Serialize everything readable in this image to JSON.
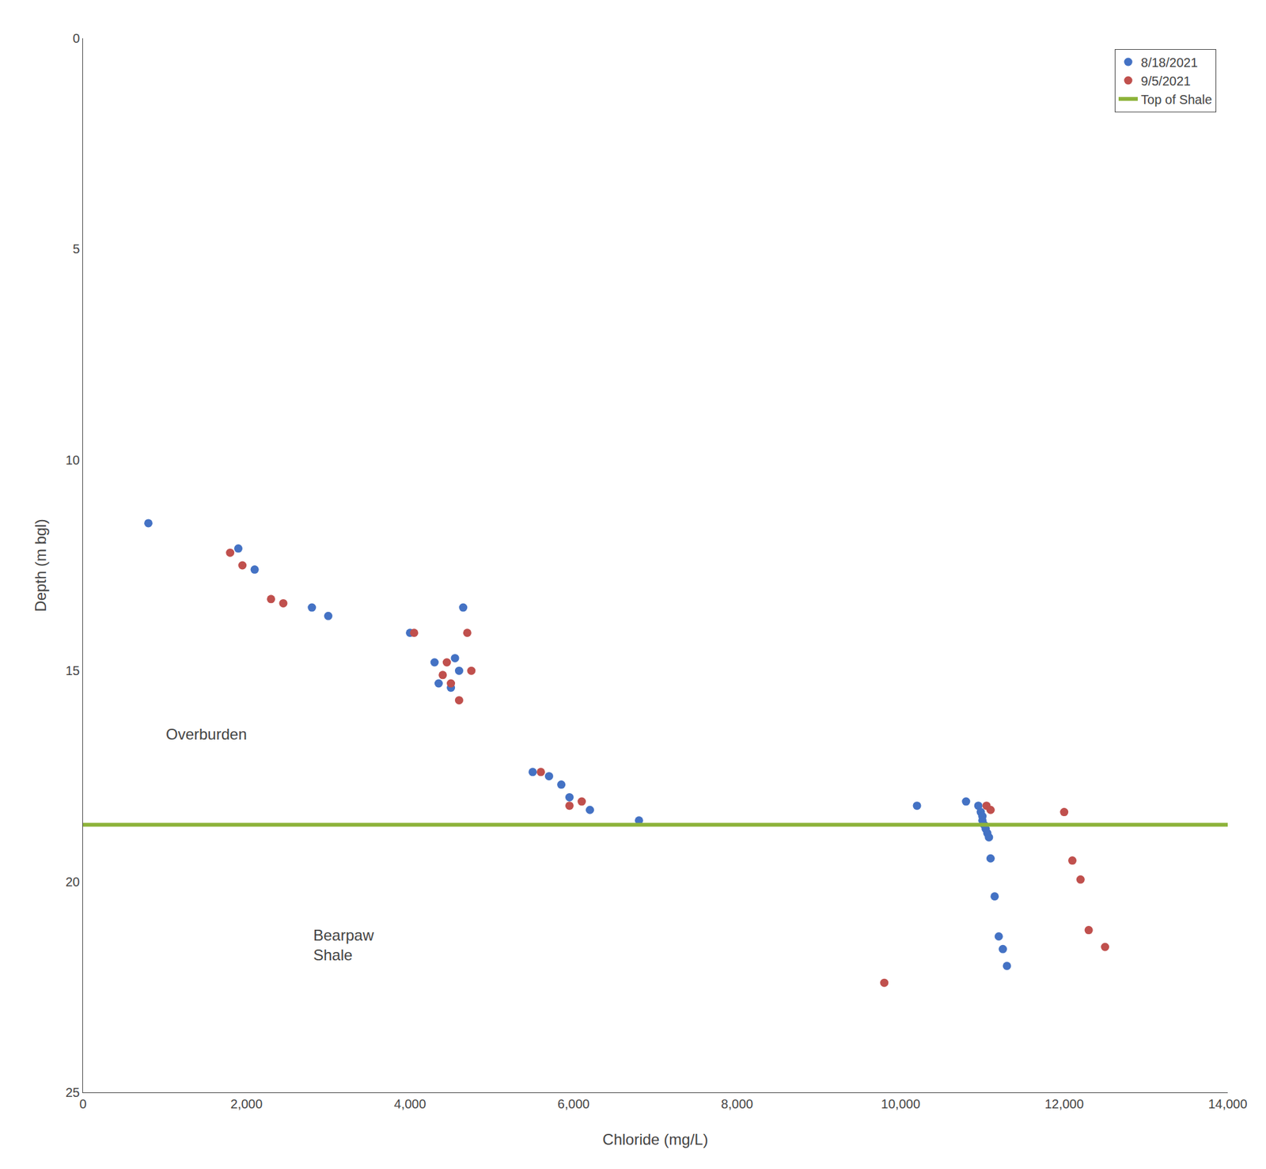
{
  "chart_data": {
    "type": "scatter",
    "x_label": "Chloride (mg/L)",
    "y_label": "Depth (m bgl)",
    "series": [
      {
        "name": "8/18/2021",
        "color": "#4472C4",
        "marker": "circle",
        "x": [
          800,
          1900,
          2100,
          2800,
          3000,
          4000,
          4300,
          4350,
          4500,
          4550,
          4600,
          4650,
          5500,
          5700,
          5850,
          5950,
          6200,
          6800,
          10200,
          10800,
          10950,
          10980,
          11000,
          11000,
          11020,
          11040,
          11060,
          11080,
          11100,
          11150,
          11200,
          11250,
          11300
        ],
        "values": [
          11.5,
          12.1,
          12.6,
          13.5,
          13.7,
          14.1,
          14.8,
          15.3,
          15.4,
          14.7,
          15.0,
          13.5,
          17.4,
          17.5,
          17.7,
          18.0,
          18.3,
          18.55,
          18.2,
          18.1,
          18.2,
          18.35,
          18.45,
          18.55,
          18.65,
          18.75,
          18.85,
          18.95,
          19.45,
          20.35,
          21.3,
          21.6,
          22.0
        ]
      },
      {
        "name": "9/5/2021",
        "color": "#C0504D",
        "marker": "circle",
        "x": [
          1800,
          1950,
          2300,
          2450,
          4050,
          4400,
          4450,
          4500,
          4600,
          4700,
          4750,
          5600,
          5950,
          6100,
          9800,
          11050,
          11100,
          12000,
          12100,
          12200,
          12300,
          12500
        ],
        "values": [
          12.2,
          12.5,
          13.3,
          13.4,
          14.1,
          15.1,
          14.8,
          15.3,
          15.7,
          14.1,
          15.0,
          17.4,
          18.2,
          18.1,
          22.4,
          18.2,
          18.3,
          18.35,
          19.5,
          19.95,
          21.15,
          21.55
        ]
      },
      {
        "name": "Top of Shale",
        "type": "hline",
        "color": "#8DB33A",
        "line_style": "solid",
        "values": [
          18.65
        ]
      }
    ],
    "annotations": [
      {
        "text": "Overburden",
        "x": 1000,
        "y": 16.5
      },
      {
        "text": "Bearpaw\nShale",
        "x": 2800,
        "y": 21.5
      }
    ],
    "xlim": [
      0,
      14000
    ],
    "ylim": [
      25,
      0
    ],
    "xticks": [
      0,
      {
        "value": 2000,
        "label": "2,000"
      },
      {
        "value": 4000,
        "label": "4,000"
      },
      {
        "value": 6000,
        "label": "6,000"
      },
      {
        "value": 8000,
        "label": "8,000"
      },
      {
        "value": 10000,
        "label": "10,000"
      },
      {
        "value": 12000,
        "label": "12,000"
      },
      {
        "value": 14000,
        "label": "14,000"
      }
    ],
    "yticks": [
      0,
      5,
      10,
      15,
      20,
      25
    ],
    "grid": false,
    "legend": "upper right"
  }
}
